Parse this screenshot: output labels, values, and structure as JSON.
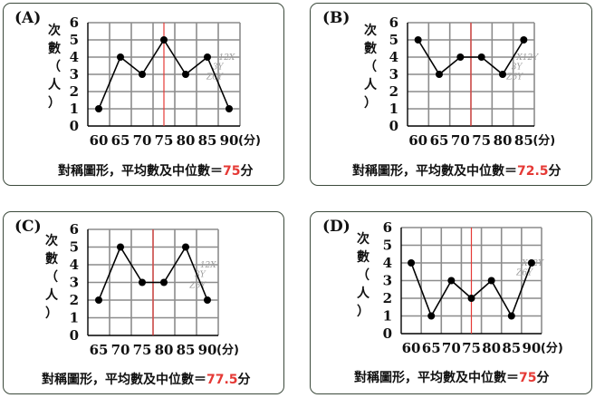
{
  "panels": [
    {
      "label": "(A)",
      "ylabel": [
        "次",
        "數",
        "（",
        "人",
        "）"
      ],
      "xticks": [
        "60",
        "65",
        "70",
        "75",
        "80",
        "85",
        "90"
      ],
      "xunit": "(分)",
      "yticks": [
        "0",
        "1",
        "2",
        "3",
        "4",
        "5",
        "6"
      ],
      "caption_prefix": "對稱圖形，平均數及中位數＝",
      "caption_value": "75",
      "caption_suffix": "分",
      "scribble": [
        "12X",
        "3Y",
        "Z6Y"
      ]
    },
    {
      "label": "(B)",
      "ylabel": [
        "次",
        "數",
        "（",
        "人",
        "）"
      ],
      "xticks": [
        "60",
        "65",
        "70",
        "75",
        "80",
        "85"
      ],
      "xunit": "(分)",
      "yticks": [
        "0",
        "1",
        "2",
        "3",
        "4",
        "5",
        "6"
      ],
      "caption_prefix": "對稱圖形，平均數及中位數＝",
      "caption_value": "72.5",
      "caption_suffix": "分",
      "scribble": [
        "X12Y",
        "3Y",
        "Z6Y"
      ]
    },
    {
      "label": "(C)",
      "ylabel": [
        "次",
        "數",
        "（",
        "人",
        "）"
      ],
      "xticks": [
        "65",
        "70",
        "75",
        "80",
        "85",
        "90"
      ],
      "xunit": "(分)",
      "yticks": [
        "0",
        "1",
        "2",
        "3",
        "4",
        "5",
        "6"
      ],
      "caption_prefix": "對稱圖形，平均數及中位數＝",
      "caption_value": "77.5",
      "caption_suffix": "分",
      "scribble": [
        "12X",
        "3Y",
        "Z6Y"
      ]
    },
    {
      "label": "(D)",
      "ylabel": [
        "次",
        "數",
        "（",
        "人",
        "）"
      ],
      "xticks": [
        "60",
        "65",
        "70",
        "75",
        "80",
        "85",
        "90"
      ],
      "xunit": "(分)",
      "yticks": [
        "0",
        "1",
        "2",
        "3",
        "4",
        "5",
        "6"
      ],
      "caption_prefix": "對稱圖形，平均數及中位數＝",
      "caption_value": "75",
      "caption_suffix": "分",
      "scribble": [
        "X12Y",
        "Z6Y"
      ]
    }
  ],
  "chart_data": [
    {
      "type": "line",
      "x": [
        60,
        65,
        70,
        75,
        80,
        85,
        90
      ],
      "values": [
        1,
        4,
        3,
        5,
        3,
        4,
        1
      ],
      "ylim": [
        0,
        6
      ],
      "marker_line_x": 75
    },
    {
      "type": "line",
      "x": [
        60,
        65,
        70,
        75,
        80,
        85
      ],
      "values": [
        5,
        3,
        4,
        4,
        3,
        5
      ],
      "ylim": [
        0,
        6
      ],
      "marker_line_x": 72.5
    },
    {
      "type": "line",
      "x": [
        65,
        70,
        75,
        80,
        85,
        90
      ],
      "values": [
        2,
        5,
        3,
        3,
        5,
        2
      ],
      "ylim": [
        0,
        6
      ],
      "marker_line_x": 77.5
    },
    {
      "type": "line",
      "x": [
        60,
        65,
        70,
        75,
        80,
        85,
        90
      ],
      "values": [
        4,
        1,
        3,
        2,
        3,
        1,
        4
      ],
      "ylim": [
        0,
        6
      ],
      "marker_line_x": 75
    }
  ],
  "colors": {
    "grid": "#8c8c8c",
    "axis": "#000000",
    "line": "#000000",
    "marker": "#e53935",
    "highlight": "#e53935",
    "border": "#3c4a3c"
  }
}
